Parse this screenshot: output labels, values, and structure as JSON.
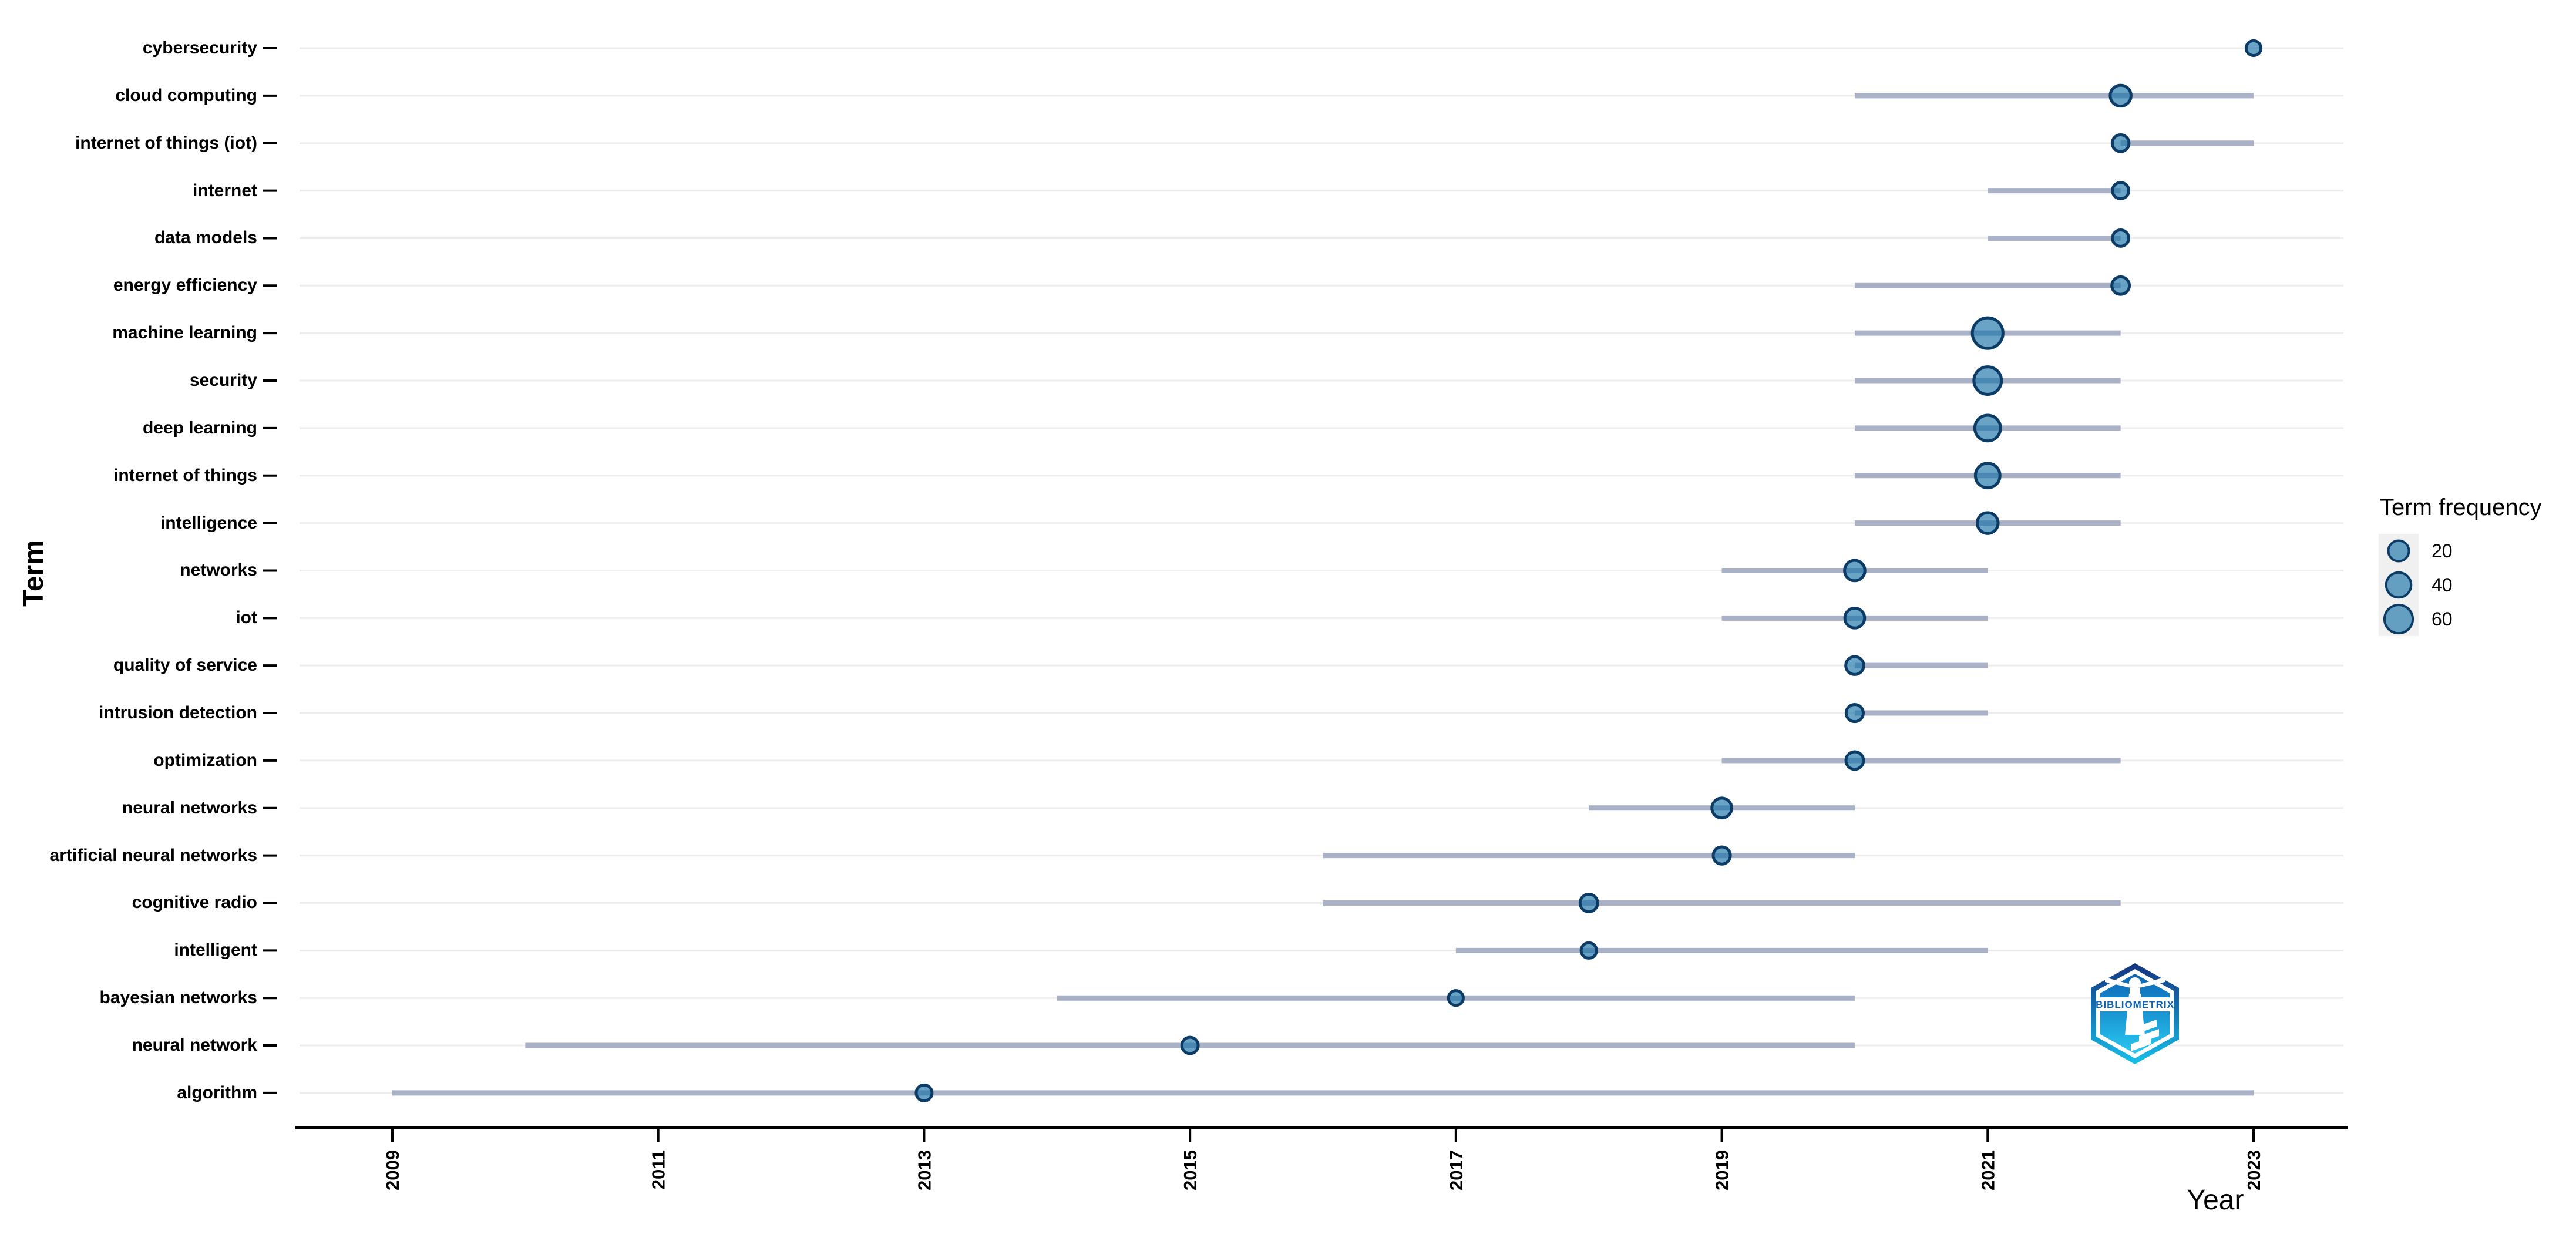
{
  "chart_data": {
    "type": "scatter",
    "subtype": "trend-topics-dot-range",
    "title": "",
    "xlabel": "Year",
    "ylabel": "Term",
    "x_ticks": [
      2009,
      2011,
      2013,
      2015,
      2017,
      2019,
      2021,
      2023
    ],
    "x_range": [
      2008.3,
      2023.7
    ],
    "grid": "horizontal-only",
    "legend": {
      "title": "Term frequency",
      "values": [
        20,
        40,
        60
      ],
      "position": "right"
    },
    "terms": [
      {
        "term": "cybersecurity",
        "q1": 2023,
        "median": 2023,
        "q3": 2023,
        "freq": 4
      },
      {
        "term": "cloud computing",
        "q1": 2020,
        "median": 2022,
        "q3": 2023,
        "freq": 21
      },
      {
        "term": "internet of things (iot)",
        "q1": 2022,
        "median": 2022,
        "q3": 2023,
        "freq": 8
      },
      {
        "term": "internet",
        "q1": 2021,
        "median": 2022,
        "q3": 2022,
        "freq": 7
      },
      {
        "term": "data models",
        "q1": 2021,
        "median": 2022,
        "q3": 2022,
        "freq": 7
      },
      {
        "term": "energy efficiency",
        "q1": 2020,
        "median": 2022,
        "q3": 2022,
        "freq": 10
      },
      {
        "term": "machine learning",
        "q1": 2020,
        "median": 2021,
        "q3": 2022,
        "freq": 76
      },
      {
        "term": "security",
        "q1": 2020,
        "median": 2021,
        "q3": 2022,
        "freq": 55
      },
      {
        "term": "deep learning",
        "q1": 2020,
        "median": 2021,
        "q3": 2022,
        "freq": 44
      },
      {
        "term": "internet of things",
        "q1": 2020,
        "median": 2021,
        "q3": 2022,
        "freq": 38
      },
      {
        "term": "intelligence",
        "q1": 2020,
        "median": 2021,
        "q3": 2022,
        "freq": 21
      },
      {
        "term": "networks",
        "q1": 2019,
        "median": 2020,
        "q3": 2021,
        "freq": 19
      },
      {
        "term": "iot",
        "q1": 2019,
        "median": 2020,
        "q3": 2021,
        "freq": 17
      },
      {
        "term": "quality of service",
        "q1": 2020,
        "median": 2020,
        "q3": 2021,
        "freq": 11
      },
      {
        "term": "intrusion detection",
        "q1": 2020,
        "median": 2020,
        "q3": 2021,
        "freq": 9
      },
      {
        "term": "optimization",
        "q1": 2019,
        "median": 2020,
        "q3": 2022,
        "freq": 10
      },
      {
        "term": "neural networks",
        "q1": 2018,
        "median": 2019,
        "q3": 2020,
        "freq": 17
      },
      {
        "term": "artificial neural networks",
        "q1": 2016,
        "median": 2019,
        "q3": 2020,
        "freq": 9
      },
      {
        "term": "cognitive radio",
        "q1": 2016,
        "median": 2018,
        "q3": 2022,
        "freq": 10
      },
      {
        "term": "intelligent",
        "q1": 2017,
        "median": 2018,
        "q3": 2021,
        "freq": 5
      },
      {
        "term": "bayesian networks",
        "q1": 2014,
        "median": 2017,
        "q3": 2020,
        "freq": 4
      },
      {
        "term": "neural network",
        "q1": 2010,
        "median": 2015,
        "q3": 2020,
        "freq": 7
      },
      {
        "term": "algorithm",
        "q1": 2009,
        "median": 2013,
        "q3": 2023,
        "freq": 6
      }
    ],
    "style": {
      "bubble_fill": "#1571a8",
      "bubble_opacity": 0.64,
      "bubble_stroke": "#0c3c66",
      "range_line_color": "#a9b1c7",
      "gridline_color": "#ededed",
      "axis_color": "#000000",
      "key_background": "#f0f0f0"
    }
  },
  "logo": {
    "text": "BIBLIOMETRIX",
    "color_top": "#14337f",
    "color_bottom": "#17c0ea"
  }
}
